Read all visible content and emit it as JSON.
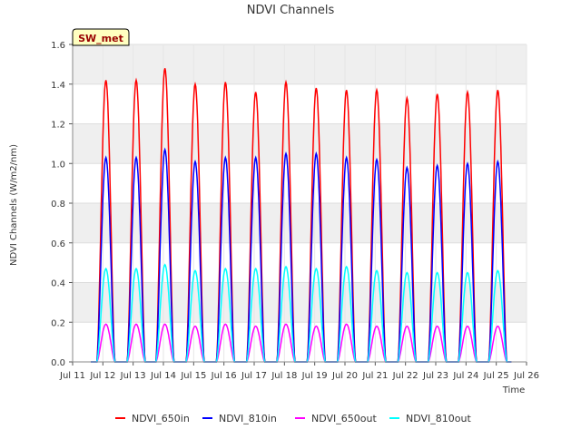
{
  "chart_data": {
    "type": "line",
    "title": "NDVI Channels",
    "xlabel": "Time",
    "ylabel": "NDVI Channels (W/m2/nm)",
    "badge": "SW_met",
    "xlim": [
      11,
      26
    ],
    "ylim": [
      0.0,
      1.6
    ],
    "x_ticks": [
      "Jul 11",
      "Jul 12",
      "Jul 13",
      "Jul 14",
      "Jul 15",
      "Jul 16",
      "Jul 17",
      "Jul 18",
      "Jul 19",
      "Jul 20",
      "Jul 21",
      "Jul 22",
      "Jul 23",
      "Jul 24",
      "Jul 25",
      "Jul 26"
    ],
    "y_ticks": [
      "0.0",
      "0.2",
      "0.4",
      "0.6",
      "0.8",
      "1.0",
      "1.2",
      "1.4",
      "1.6"
    ],
    "grid": true,
    "legend_position": "bottom",
    "day_centers": [
      12.1,
      13.1,
      14.05,
      15.05,
      16.05,
      17.05,
      18.05,
      19.05,
      20.05,
      21.05,
      22.05,
      23.05,
      24.05,
      25.05
    ],
    "series": [
      {
        "name": "NDVI_650in",
        "color": "#ff0000",
        "daily_peaks": [
          1.42,
          1.42,
          1.48,
          1.4,
          1.41,
          1.36,
          1.41,
          1.38,
          1.37,
          1.37,
          1.33,
          1.35,
          1.36,
          1.37
        ]
      },
      {
        "name": "NDVI_810in",
        "color": "#0000ff",
        "daily_peaks": [
          1.03,
          1.03,
          1.07,
          1.01,
          1.03,
          1.03,
          1.05,
          1.05,
          1.03,
          1.02,
          0.98,
          0.99,
          1.0,
          1.01
        ]
      },
      {
        "name": "NDVI_650out",
        "color": "#ff00ff",
        "daily_peaks": [
          0.19,
          0.19,
          0.19,
          0.18,
          0.19,
          0.18,
          0.19,
          0.18,
          0.19,
          0.18,
          0.18,
          0.18,
          0.18,
          0.18
        ]
      },
      {
        "name": "NDVI_810out",
        "color": "#00ffff",
        "daily_peaks": [
          0.47,
          0.47,
          0.49,
          0.46,
          0.47,
          0.47,
          0.48,
          0.47,
          0.48,
          0.46,
          0.45,
          0.45,
          0.45,
          0.46
        ]
      }
    ]
  }
}
